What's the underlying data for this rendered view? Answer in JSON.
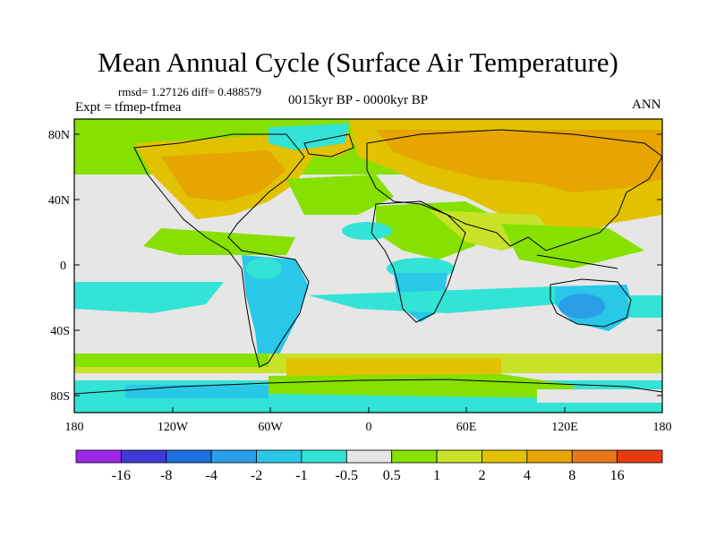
{
  "title": "Mean Annual Cycle (Surface Air Temperature)",
  "stats": "rmsd= 1.27126 diff= 0.488579",
  "experiment": "Expt = tfmep-tfmea",
  "period": "0015kyr BP - 0000kyr BP",
  "season": "ANN",
  "y_ticks": [
    "80N",
    "40N",
    "0",
    "40S",
    "80S"
  ],
  "x_ticks": [
    "180",
    "120W",
    "60W",
    "0",
    "60E",
    "120E",
    "180"
  ],
  "colorbar": {
    "colors": [
      "#9c27e8",
      "#3d3ad8",
      "#1e6fe0",
      "#2a9fe8",
      "#29c8e8",
      "#33e3d6",
      "#e6e6e6",
      "#86e000",
      "#c8e22a",
      "#e2c200",
      "#e6a500",
      "#e87818",
      "#e83a10"
    ],
    "labels": [
      "-16",
      "-8",
      "-4",
      "-2",
      "-1",
      "-0.5",
      "0.5",
      "1",
      "2",
      "4",
      "8",
      "16"
    ]
  },
  "colors": {
    "neutral": "#e6e6e6",
    "green": "#86e000",
    "light_green": "#c8e22a",
    "gold": "#e2c200",
    "orange": "#e6a500",
    "cyan": "#33e3d6",
    "light_blue": "#29c8e8",
    "blue": "#2a9fe8"
  }
}
